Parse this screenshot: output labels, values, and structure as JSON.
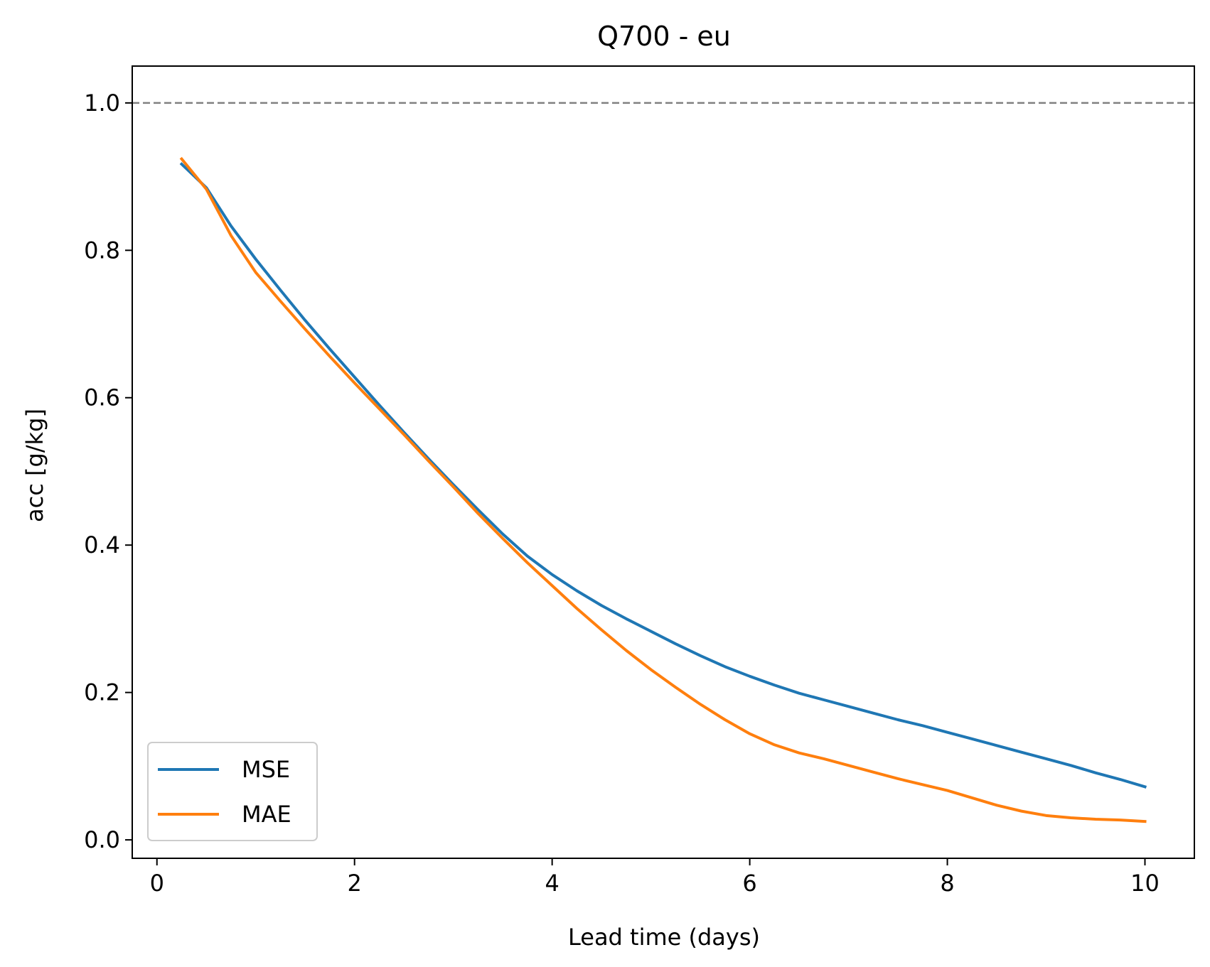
{
  "chart_data": {
    "type": "line",
    "title": "Q700 - eu",
    "xlabel": "Lead time (days)",
    "ylabel": "acc [g/kg]",
    "xlim": [
      -0.25,
      10.5
    ],
    "ylim": [
      -0.025,
      1.05
    ],
    "xticks": [
      0,
      2,
      4,
      6,
      8,
      10
    ],
    "xtick_labels": [
      "0",
      "2",
      "4",
      "6",
      "8",
      "10"
    ],
    "yticks": [
      0.0,
      0.2,
      0.4,
      0.6,
      0.8,
      1.0
    ],
    "ytick_labels": [
      "0.0",
      "0.2",
      "0.4",
      "0.6",
      "0.8",
      "1.0"
    ],
    "grid": false,
    "legend_position": "lower-left",
    "reference_line": {
      "y": 1.0,
      "color": "#808080",
      "style": "dashed"
    },
    "x": [
      0.25,
      0.5,
      0.75,
      1.0,
      1.25,
      1.5,
      1.75,
      2.0,
      2.25,
      2.5,
      2.75,
      3.0,
      3.25,
      3.5,
      3.75,
      4.0,
      4.25,
      4.5,
      4.75,
      5.0,
      5.25,
      5.5,
      5.75,
      6.0,
      6.25,
      6.5,
      6.75,
      7.0,
      7.25,
      7.5,
      7.75,
      8.0,
      8.25,
      8.5,
      8.75,
      9.0,
      9.25,
      9.5,
      9.75,
      10.0
    ],
    "series": [
      {
        "name": "MSE",
        "color": "#1f77b4",
        "values": [
          0.917,
          0.885,
          0.833,
          0.788,
          0.746,
          0.705,
          0.666,
          0.628,
          0.59,
          0.553,
          0.517,
          0.482,
          0.448,
          0.415,
          0.385,
          0.36,
          0.338,
          0.318,
          0.3,
          0.283,
          0.266,
          0.25,
          0.235,
          0.222,
          0.21,
          0.199,
          0.19,
          0.181,
          0.172,
          0.163,
          0.155,
          0.146,
          0.137,
          0.128,
          0.119,
          0.11,
          0.101,
          0.091,
          0.082,
          0.072
        ]
      },
      {
        "name": "MAE",
        "color": "#ff7f0e",
        "values": [
          0.924,
          0.883,
          0.82,
          0.77,
          0.731,
          0.693,
          0.656,
          0.62,
          0.585,
          0.55,
          0.514,
          0.479,
          0.443,
          0.409,
          0.376,
          0.345,
          0.314,
          0.285,
          0.257,
          0.231,
          0.207,
          0.184,
          0.163,
          0.144,
          0.129,
          0.118,
          0.11,
          0.101,
          0.092,
          0.083,
          0.075,
          0.067,
          0.057,
          0.047,
          0.039,
          0.033,
          0.03,
          0.028,
          0.027,
          0.025
        ]
      }
    ]
  }
}
